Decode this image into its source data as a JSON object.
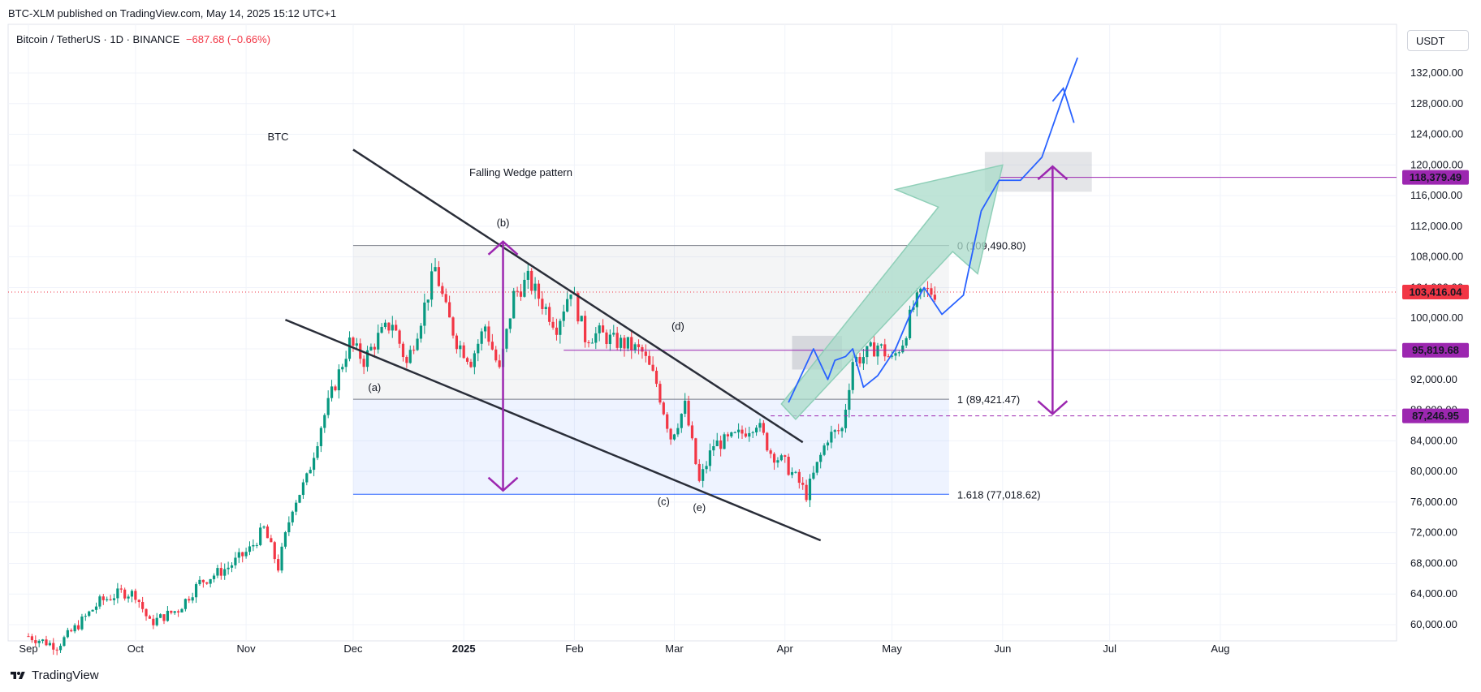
{
  "header": {
    "published": "BTC-XLM published on TradingView.com, May 14, 2025 15:12 UTC+1",
    "symbol_line": "Bitcoin / TetherUS · 1D · BINANCE",
    "change": "−687.68 (−0.66%)",
    "currency": "USDT"
  },
  "footer": {
    "brand": "TradingView"
  },
  "chart_data": {
    "type": "candlestick",
    "title": "BTC",
    "pattern_label": "Falling Wedge pattern",
    "ylim": [
      58500,
      137000
    ],
    "y_ticks": [
      60000,
      64000,
      68000,
      72000,
      76000,
      80000,
      84000,
      88000,
      92000,
      96000,
      100000,
      104000,
      108000,
      112000,
      116000,
      120000,
      124000,
      128000,
      132000
    ],
    "y_tick_labels": [
      "60,000.00",
      "64,000.00",
      "68,000.00",
      "72,000.00",
      "76,000.00",
      "80,000.00",
      "84,000.00",
      "88,000.00",
      "92,000.00",
      "96,000.00",
      "100,000.00",
      "104,000.00",
      "108,000.00",
      "112,000.00",
      "116,000.00",
      "120,000.00",
      "124,000.00",
      "128,000.00",
      "132,000.00"
    ],
    "x_ticks": [
      {
        "label": "Sep",
        "day": 0
      },
      {
        "label": "Oct",
        "day": 30
      },
      {
        "label": "Nov",
        "day": 61
      },
      {
        "label": "Dec",
        "day": 91
      },
      {
        "label": "2025",
        "day": 122
      },
      {
        "label": "Feb",
        "day": 153
      },
      {
        "label": "Mar",
        "day": 181
      },
      {
        "label": "Apr",
        "day": 212
      },
      {
        "label": "May",
        "day": 242
      },
      {
        "label": "Jun",
        "day": 273
      },
      {
        "label": "Jul",
        "day": 303
      },
      {
        "label": "Aug",
        "day": 334
      }
    ],
    "price_path": [
      [
        0,
        58500
      ],
      [
        8,
        57200
      ],
      [
        14,
        60000
      ],
      [
        20,
        63000
      ],
      [
        26,
        64200
      ],
      [
        30,
        64000
      ],
      [
        34,
        60200
      ],
      [
        42,
        62000
      ],
      [
        48,
        65500
      ],
      [
        56,
        67500
      ],
      [
        62,
        69800
      ],
      [
        66,
        72500
      ],
      [
        70,
        67500
      ],
      [
        74,
        75500
      ],
      [
        78,
        79000
      ],
      [
        82,
        86000
      ],
      [
        86,
        91500
      ],
      [
        90,
        96800
      ],
      [
        94,
        94500
      ],
      [
        98,
        97500
      ],
      [
        102,
        99500
      ],
      [
        106,
        94000
      ],
      [
        110,
        100000
      ],
      [
        114,
        106500
      ],
      [
        117,
        101000
      ],
      [
        120,
        97000
      ],
      [
        124,
        94500
      ],
      [
        128,
        99000
      ],
      [
        132,
        93000
      ],
      [
        136,
        103000
      ],
      [
        140,
        105000
      ],
      [
        144,
        102000
      ],
      [
        148,
        99000
      ],
      [
        152,
        104000
      ],
      [
        156,
        97500
      ],
      [
        160,
        98000
      ],
      [
        164,
        97000
      ],
      [
        168,
        96500
      ],
      [
        172,
        95500
      ],
      [
        176,
        91500
      ],
      [
        180,
        84500
      ],
      [
        184,
        88500
      ],
      [
        188,
        78500
      ],
      [
        192,
        83500
      ],
      [
        196,
        84000
      ],
      [
        200,
        85000
      ],
      [
        204,
        86500
      ],
      [
        208,
        82500
      ],
      [
        212,
        81000
      ],
      [
        216,
        78500
      ],
      [
        218,
        77000
      ],
      [
        220,
        79500
      ],
      [
        224,
        84500
      ],
      [
        228,
        85500
      ],
      [
        231,
        94500
      ],
      [
        234,
        95000
      ],
      [
        238,
        96500
      ],
      [
        242,
        94500
      ],
      [
        245,
        97000
      ],
      [
        248,
        101500
      ],
      [
        251,
        103500
      ],
      [
        254,
        103400
      ]
    ],
    "series_candles_note": "daily BTC/USDT candles, Sep 2024 – May 14 2025",
    "last_price": 103416.04,
    "price_change": -687.68,
    "price_change_pct": -0.66,
    "fib_levels": [
      {
        "ratio": 0,
        "value": 109490.8,
        "label": "0 (109,490.80)"
      },
      {
        "ratio": 1,
        "value": 89421.47,
        "label": "1 (89,421.47)"
      },
      {
        "ratio": 1.618,
        "value": 77018.62,
        "label": "1.618 (77,018.62)"
      }
    ],
    "horizontal_levels": [
      {
        "value": 95819.68,
        "label": "95,819.68",
        "color": "#9c27b0"
      },
      {
        "value": 87246.95,
        "label": "87,246.95",
        "color": "#9c27b0"
      },
      {
        "value": 118379.49,
        "label": "118,379.49",
        "color": "#9c27b0"
      },
      {
        "value": 103416.04,
        "label": "103,416.04",
        "color": "#f23645"
      }
    ],
    "wave_labels": [
      {
        "label": "(a)",
        "day": 97,
        "value": 90500
      },
      {
        "label": "(b)",
        "day": 133,
        "value": 112000
      },
      {
        "label": "(c)",
        "day": 178,
        "value": 75600
      },
      {
        "label": "(d)",
        "day": 182,
        "value": 98500
      },
      {
        "label": "(e)",
        "day": 188,
        "value": 74800
      }
    ],
    "wedge_upper": [
      [
        91,
        122000
      ],
      [
        217,
        83800
      ]
    ],
    "wedge_lower": [
      [
        72,
        99800
      ],
      [
        222,
        71000
      ]
    ],
    "target_zone": {
      "from_day": 268,
      "to_day": 298,
      "low": 116500,
      "high": 121700
    },
    "projection_path": [
      [
        213,
        89000
      ],
      [
        217,
        93000
      ],
      [
        220,
        96000
      ],
      [
        224,
        92000
      ],
      [
        226,
        94500
      ],
      [
        229,
        95000
      ],
      [
        231,
        96000
      ],
      [
        234,
        91000
      ],
      [
        238,
        92500
      ],
      [
        243,
        96000
      ],
      [
        248,
        101500
      ],
      [
        251,
        104000
      ],
      [
        256,
        100500
      ],
      [
        262,
        103000
      ],
      [
        267,
        114000
      ],
      [
        272,
        118000
      ],
      [
        278,
        118000
      ],
      [
        284,
        121000
      ],
      [
        290,
        129000
      ],
      [
        294,
        134000
      ]
    ],
    "colors": {
      "up": "#089981",
      "down": "#f23645",
      "purple": "#9c27b0",
      "blue": "#2962ff",
      "fib_blue": "#2962ff",
      "arrow_fill": "#a9dbc9",
      "projection": "#2962ff"
    },
    "annotations": [
      "BTC",
      "Falling Wedge pattern"
    ]
  }
}
